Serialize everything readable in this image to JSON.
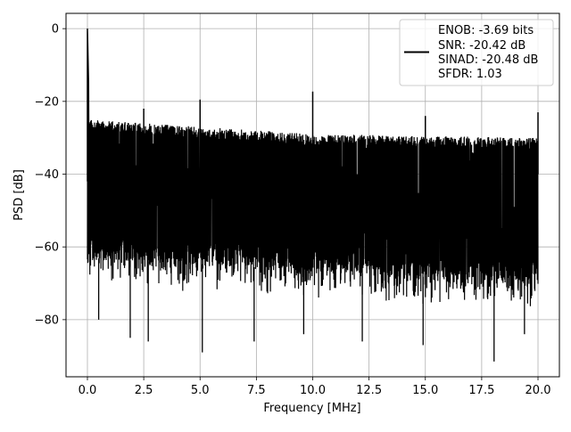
{
  "chart_data": {
    "type": "line",
    "title": "",
    "xlabel": "Frequency [MHz]",
    "ylabel": "PSD [dB]",
    "xlim": [
      -0.95,
      20.95
    ],
    "ylim": [
      -95.7,
      4.2
    ],
    "xticks": [
      0.0,
      2.5,
      5.0,
      7.5,
      10.0,
      12.5,
      15.0,
      17.5,
      20.0
    ],
    "xtick_labels": [
      "0.0",
      "2.5",
      "5.0",
      "7.5",
      "10.0",
      "12.5",
      "15.0",
      "17.5",
      "20.0"
    ],
    "yticks": [
      0,
      -20,
      -40,
      -60,
      -80
    ],
    "ytick_labels": [
      "0",
      "−20",
      "−40",
      "−60",
      "−80"
    ],
    "grid": true,
    "legend_position": "top-right",
    "series": [
      {
        "name": "ENOB: -3.69 bits\nSNR: -20.42 dB\nSINAD: -20.48 dB\nSFDR: 1.03",
        "color": "#000000",
        "description": "dense noise floor between about -25 dB and -70 dB with deep dips to about -90 dB",
        "noise_upper_envelope": [
          [
            0.0,
            -25
          ],
          [
            5.0,
            -27
          ],
          [
            10.0,
            -29
          ],
          [
            15.0,
            -29.5
          ],
          [
            20.0,
            -30
          ]
        ],
        "noise_lower_envelope": [
          [
            0.0,
            -63
          ],
          [
            20.0,
            -70
          ]
        ],
        "deep_dips": [
          [
            0.5,
            -80
          ],
          [
            1.9,
            -85
          ],
          [
            2.7,
            -86
          ],
          [
            5.1,
            -89
          ],
          [
            7.4,
            -86
          ],
          [
            9.6,
            -84
          ],
          [
            12.2,
            -86
          ],
          [
            14.9,
            -87
          ],
          [
            18.05,
            -91.5
          ],
          [
            19.4,
            -84
          ]
        ],
        "peaks": [
          {
            "x": 0.0,
            "y": 0.0
          },
          {
            "x": 2.5,
            "y": -22
          },
          {
            "x": 5.0,
            "y": -19.5
          },
          {
            "x": 10.0,
            "y": -17.3
          },
          {
            "x": 15.0,
            "y": -24
          },
          {
            "x": 20.0,
            "y": -23
          }
        ]
      }
    ],
    "legend_lines": [
      "ENOB: -3.69 bits",
      "SNR: -20.42 dB",
      "SINAD: -20.48 dB",
      "SFDR: 1.03"
    ]
  }
}
